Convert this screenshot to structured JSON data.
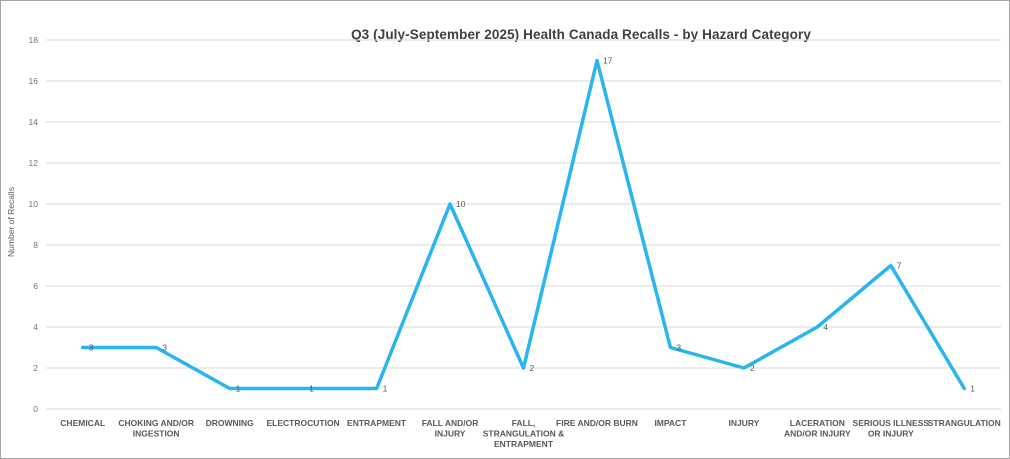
{
  "window": {
    "background_color": "#ffffff",
    "border_color": "#a6a6a6"
  },
  "chart_data": {
    "type": "line",
    "title": "Q3 (July-September 2025) Health Canada Recalls - by Hazard Category",
    "xlabel": "",
    "ylabel": "Number of Recalls",
    "categories": [
      "CHEMICAL",
      "CHOKING AND/OR INGESTION",
      "DROWNING",
      "ELECTROCUTION",
      "ENTRAPMENT",
      "FALL AND/OR INJURY",
      "FALL, STRANGULATION & ENTRAPMENT",
      "FIRE AND/OR BURN",
      "IMPACT",
      "INJURY",
      "LACERATION AND/OR INJURY",
      "SERIOUS ILLNESS OR INJURY",
      "STRANGULATION"
    ],
    "x_tick_lines": [
      [
        "CHEMICAL"
      ],
      [
        "CHOKING AND/OR",
        "INGESTION"
      ],
      [
        "DROWNING"
      ],
      [
        "ELECTROCUTION"
      ],
      [
        "ENTRAPMENT"
      ],
      [
        "FALL AND/OR",
        "INJURY"
      ],
      [
        "FALL,",
        "STRANGULATION &",
        "ENTRAPMENT"
      ],
      [
        "FIRE AND/OR BURN"
      ],
      [
        "IMPACT"
      ],
      [
        "INJURY"
      ],
      [
        "LACERATION",
        "AND/OR INJURY"
      ],
      [
        "SERIOUS ILLNESS",
        "OR INJURY"
      ],
      [
        "STRANGULATION"
      ]
    ],
    "series": [
      {
        "name": "Number of Recalls",
        "values": [
          3,
          3,
          1,
          1,
          1,
          10,
          2,
          17,
          3,
          2,
          4,
          7,
          1
        ],
        "data_labels": [
          "3",
          "3",
          "1",
          "1",
          "1",
          "10",
          "2",
          "17",
          "3",
          "2",
          "4",
          "7",
          "1"
        ],
        "color": "#29b6f0"
      }
    ],
    "ylim": [
      0,
      18
    ],
    "y_ticks": [
      0,
      2,
      4,
      6,
      8,
      10,
      12,
      14,
      16,
      18
    ],
    "grid": true,
    "legend_position": "none",
    "gridline_color": "#d9d9d9",
    "tick_label_color": "#737373",
    "category_label_color": "#595959",
    "data_label_color": "#595959",
    "title_color": "#404040"
  }
}
